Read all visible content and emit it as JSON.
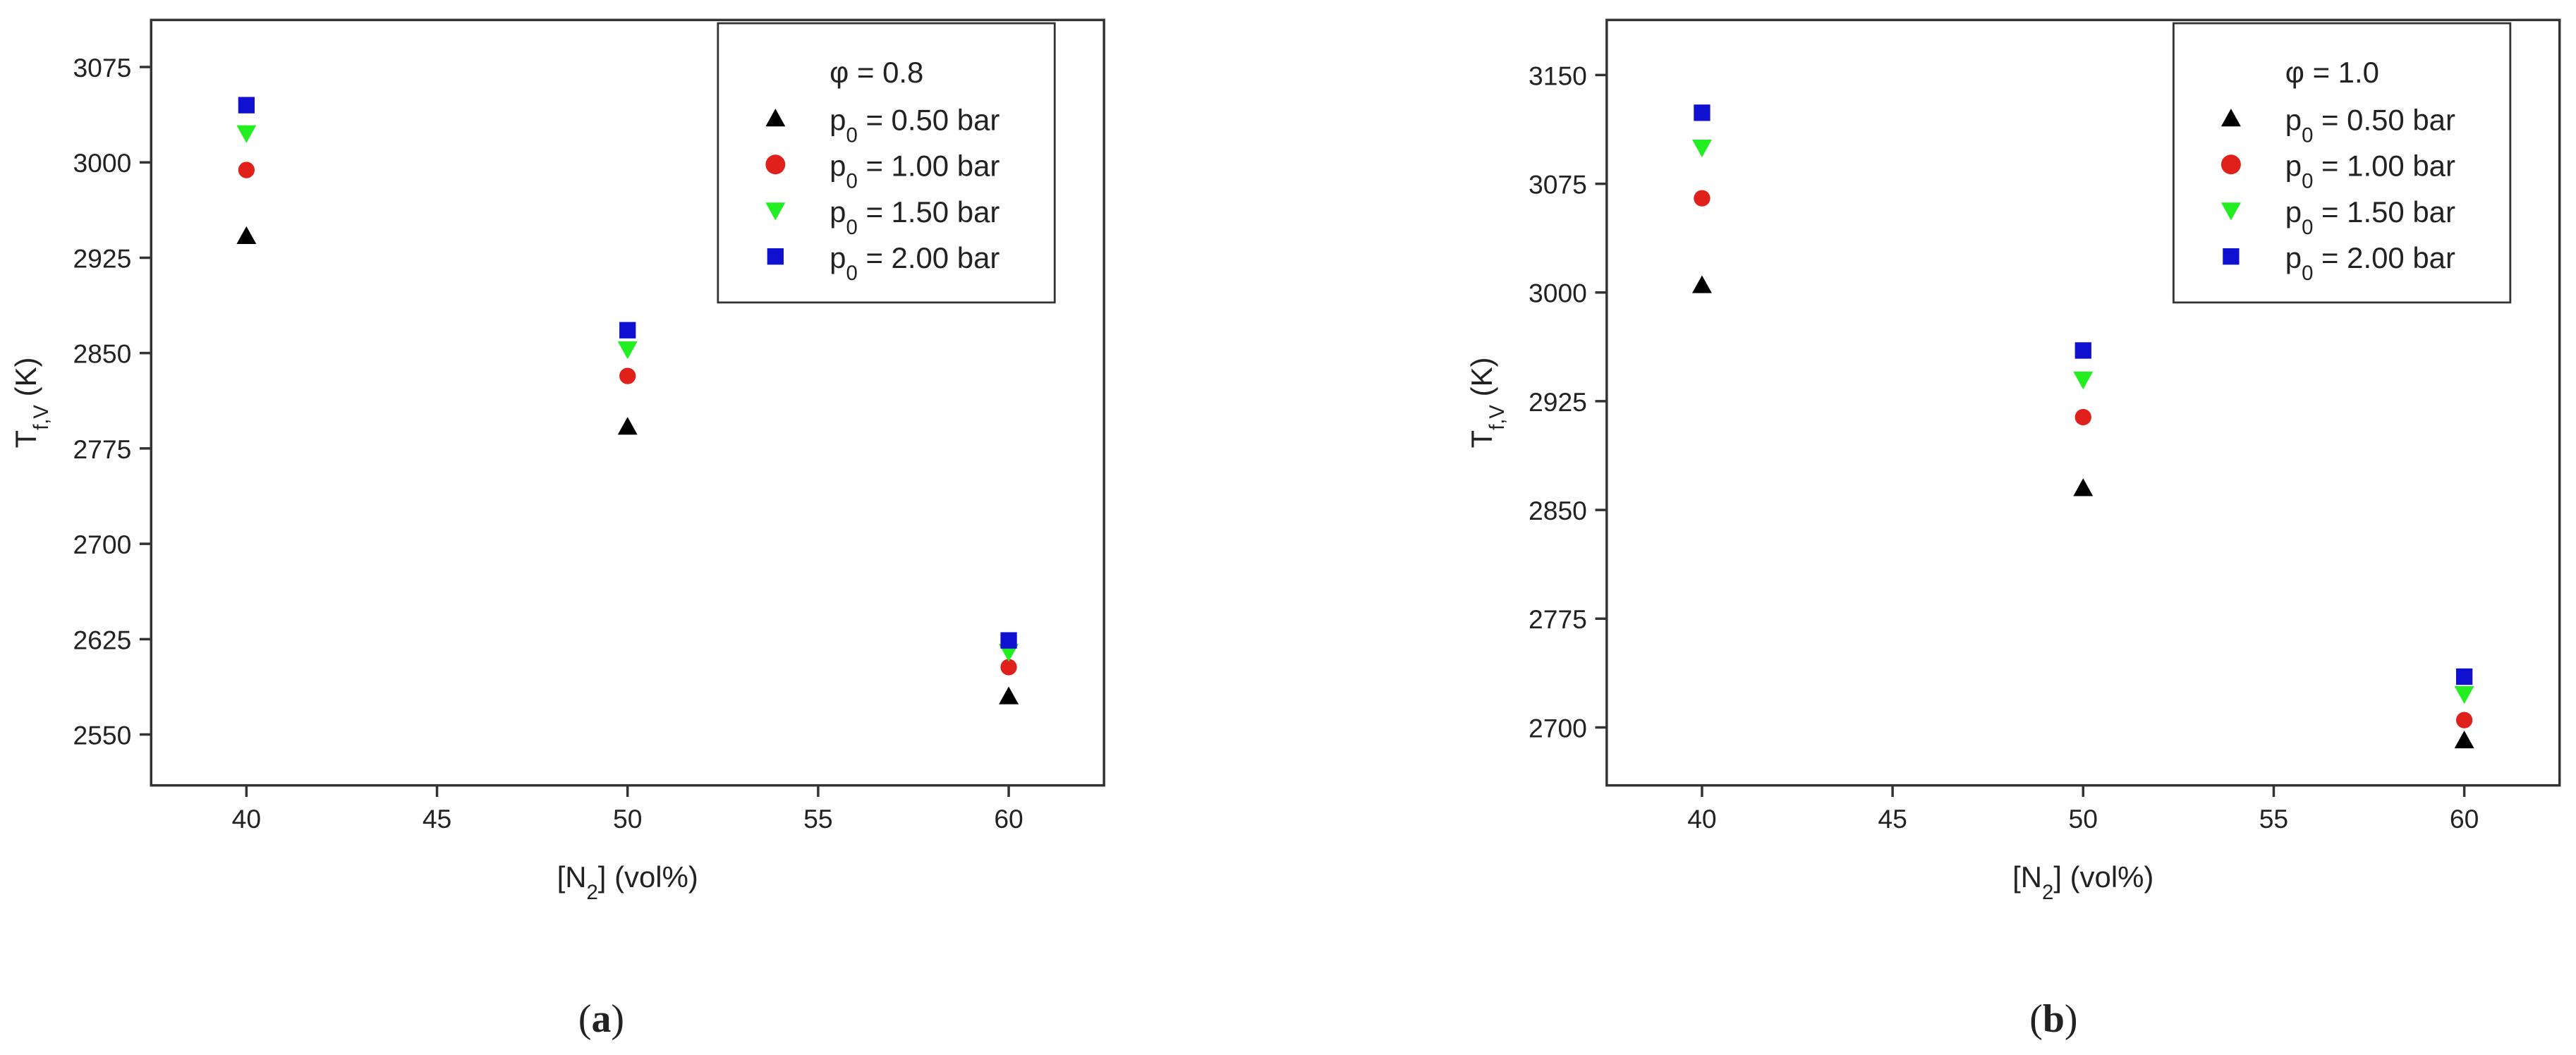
{
  "chart_data": [
    {
      "type": "scatter",
      "caption": [
        "(",
        "a",
        ")"
      ],
      "x_label": [
        "[N",
        "2",
        "] (vol%)"
      ],
      "y_label": [
        "T",
        "f,V",
        " (K)"
      ],
      "legend_title": "φ = 0.8",
      "legend": "upper right",
      "xlim": [
        37.5,
        62.5
      ],
      "xticks": [
        40,
        45,
        50,
        55,
        60
      ],
      "ylim": [
        2510,
        3112
      ],
      "yticks": [
        2550,
        2625,
        2700,
        2775,
        2850,
        2925,
        3000,
        3075
      ],
      "x": [
        40,
        50,
        60
      ],
      "series": [
        {
          "name": [
            "p",
            "0",
            " = 0.50 bar"
          ],
          "color": "#000000",
          "marker": "triangle-up",
          "values": [
            2942,
            2792,
            2580
          ]
        },
        {
          "name": [
            "p",
            "0",
            " = 1.00 bar"
          ],
          "color": "#e0201b",
          "marker": "circle",
          "values": [
            2994,
            2832,
            2603
          ]
        },
        {
          "name": [
            "p",
            "0",
            " = 1.50 bar"
          ],
          "color": "#22ee22",
          "marker": "triangle-down",
          "values": [
            3023,
            2853,
            2615
          ]
        },
        {
          "name": [
            "p",
            "0",
            " = 2.00 bar"
          ],
          "color": "#1010d0",
          "marker": "square",
          "values": [
            3045,
            2868,
            2624
          ]
        }
      ]
    },
    {
      "type": "scatter",
      "caption": [
        "(",
        "b",
        ")"
      ],
      "x_label": [
        "[N",
        "2",
        "] (vol%)"
      ],
      "y_label": [
        "T",
        "f,V",
        " (K)"
      ],
      "legend_title": "φ = 1.0",
      "legend": "upper right",
      "xlim": [
        37.5,
        62.5
      ],
      "xticks": [
        40,
        45,
        50,
        55,
        60
      ],
      "ylim": [
        2660,
        3188
      ],
      "yticks": [
        2700,
        2775,
        2850,
        2925,
        3000,
        3075,
        3150
      ],
      "x": [
        40,
        50,
        60
      ],
      "series": [
        {
          "name": [
            "p",
            "0",
            " = 0.50 bar"
          ],
          "color": "#000000",
          "marker": "triangle-up",
          "values": [
            3005,
            2865,
            2691
          ]
        },
        {
          "name": [
            "p",
            "0",
            " = 1.00 bar"
          ],
          "color": "#e0201b",
          "marker": "circle",
          "values": [
            3065,
            2914,
            2705
          ]
        },
        {
          "name": [
            "p",
            "0",
            " = 1.50 bar"
          ],
          "color": "#22ee22",
          "marker": "triangle-down",
          "values": [
            3100,
            2940,
            2723
          ]
        },
        {
          "name": [
            "p",
            "0",
            " = 2.00 bar"
          ],
          "color": "#1010d0",
          "marker": "square",
          "values": [
            3124,
            2960,
            2735
          ]
        }
      ]
    }
  ]
}
